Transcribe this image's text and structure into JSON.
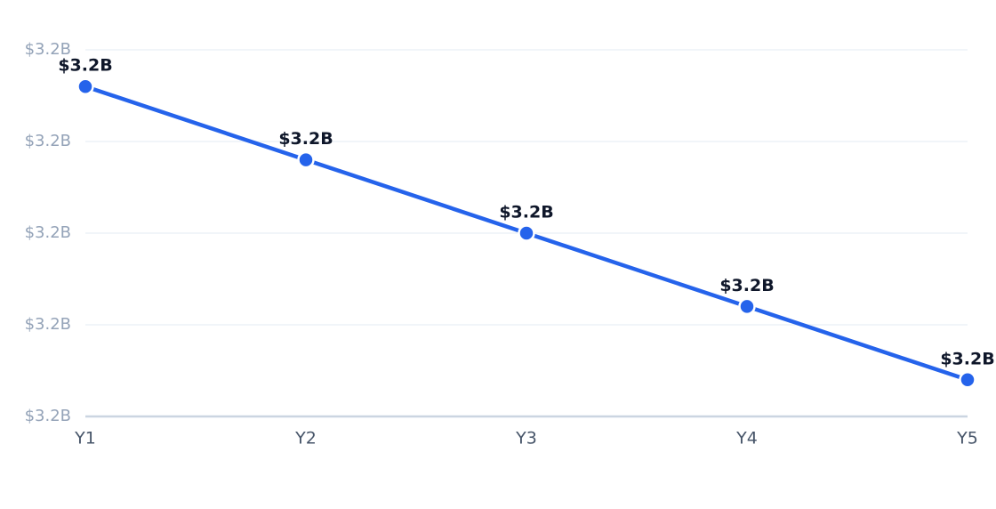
{
  "chart_data": {
    "type": "line",
    "categories": [
      "Y1",
      "Y2",
      "Y3",
      "Y4",
      "Y5"
    ],
    "series": [
      {
        "color": "#2563eb",
        "values": [
          3203200000,
          3201600000,
          3200000000,
          3198400000,
          3196800000
        ],
        "value_labels": [
          "$3.2B",
          "$3.2B",
          "$3.2B",
          "$3.2B",
          "$3.2B"
        ]
      }
    ],
    "ylim": [
      3196000000,
      3204000000
    ],
    "yticks": [
      {
        "value": 3196000000,
        "label": "$3.2B"
      },
      {
        "value": 3198000000,
        "label": "$3.2B"
      },
      {
        "value": 3200000000,
        "label": "$3.2B"
      },
      {
        "value": 3202000000,
        "label": "$3.2B"
      },
      {
        "value": 3204000000,
        "label": "$3.2B"
      }
    ],
    "grid": true
  }
}
